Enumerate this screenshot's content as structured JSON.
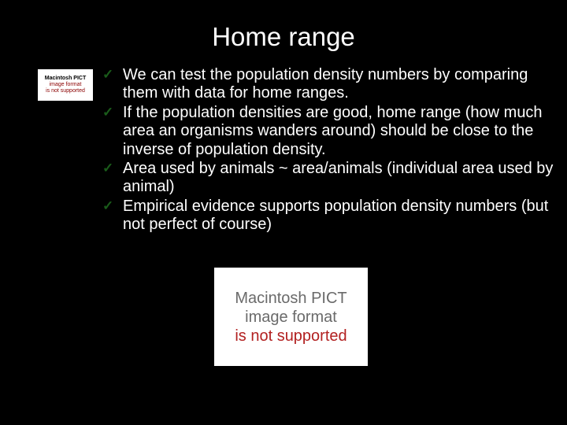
{
  "slide": {
    "title": "Home range",
    "background_color": "#000000",
    "title_color": "#ffffff",
    "title_fontsize": 33,
    "text_color": "#ffffff",
    "text_fontsize": 20,
    "checkmark_color": "#1a5c1a",
    "bullets": [
      "We can test the population density numbers by comparing them with data for home ranges.",
      "If the population densities are good, home range (how much area an organisms wanders around) should be close to the inverse of population density.",
      "Area used by animals ~ area/animals (individual area used by animal)",
      "Empirical evidence supports population density numbers (but not perfect of course)"
    ],
    "pict_placeholder": {
      "line1": "Macintosh PICT",
      "line2": "image format",
      "line3": "is not supported",
      "bg": "#ffffff",
      "text_gray": "#6a6a6a",
      "text_red": "#b22020"
    }
  }
}
